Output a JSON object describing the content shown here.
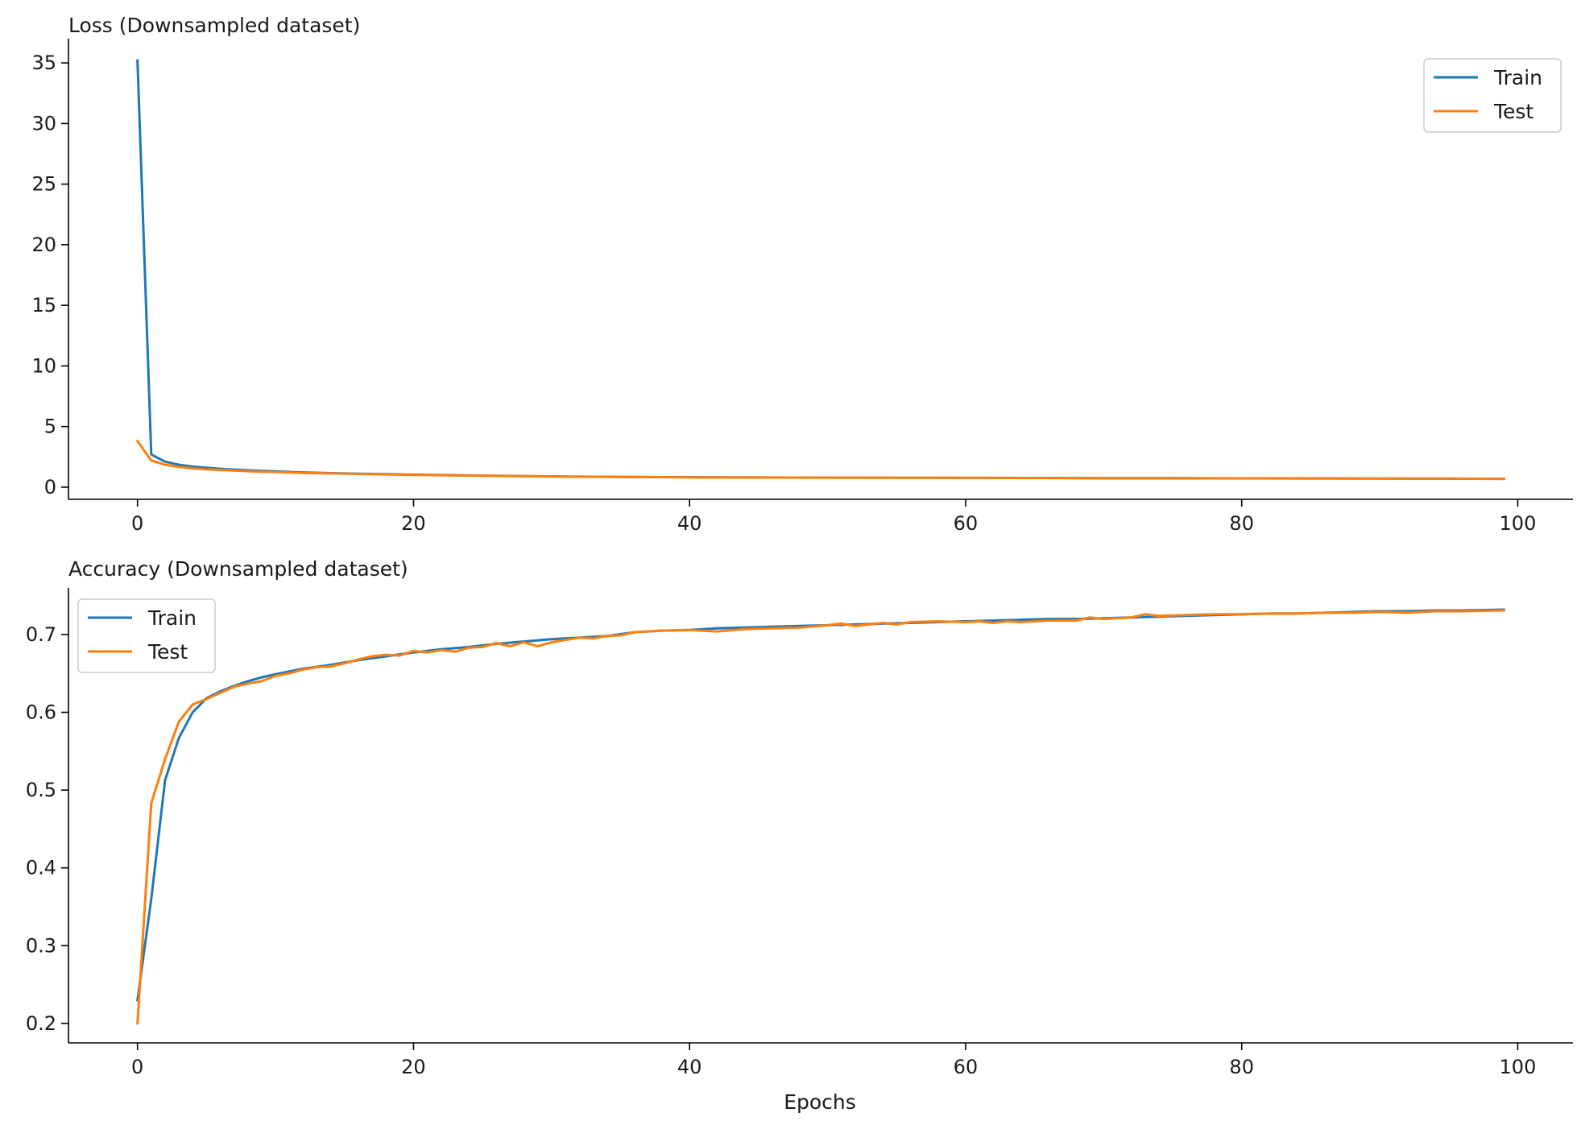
{
  "colors": {
    "train": "#1f77b4",
    "test": "#ff7f0e",
    "axis": "#000000"
  },
  "chart_data": [
    {
      "type": "line",
      "title": "Loss (Downsampled dataset)",
      "xlabel": "",
      "ylabel": "",
      "xlim": [
        -5,
        104
      ],
      "ylim": [
        -1,
        37
      ],
      "xticks": [
        0,
        20,
        40,
        60,
        80,
        100
      ],
      "yticks": [
        0,
        5,
        10,
        15,
        20,
        25,
        30,
        35
      ],
      "xtick_labels": [
        "0",
        "20",
        "40",
        "60",
        "80",
        "100"
      ],
      "ytick_labels": [
        "0",
        "5",
        "10",
        "15",
        "20",
        "25",
        "30",
        "35"
      ],
      "legend_position": "top-right",
      "grid": false,
      "series": [
        {
          "name": "Train",
          "x": [
            0,
            1,
            2,
            3,
            4,
            5,
            6,
            7,
            8,
            9,
            10,
            12,
            14,
            16,
            18,
            20,
            25,
            30,
            35,
            40,
            45,
            50,
            55,
            60,
            65,
            70,
            75,
            80,
            85,
            90,
            95,
            99
          ],
          "y": [
            35.2,
            2.7,
            2.1,
            1.85,
            1.7,
            1.6,
            1.52,
            1.45,
            1.39,
            1.34,
            1.3,
            1.22,
            1.16,
            1.11,
            1.07,
            1.03,
            0.95,
            0.89,
            0.85,
            0.82,
            0.8,
            0.79,
            0.78,
            0.77,
            0.76,
            0.75,
            0.74,
            0.73,
            0.72,
            0.71,
            0.7,
            0.69
          ]
        },
        {
          "name": "Test",
          "x": [
            0,
            1,
            2,
            3,
            4,
            5,
            6,
            7,
            8,
            9,
            10,
            12,
            14,
            16,
            18,
            20,
            25,
            30,
            35,
            40,
            45,
            50,
            55,
            60,
            65,
            70,
            75,
            80,
            85,
            90,
            95,
            99
          ],
          "y": [
            3.8,
            2.2,
            1.85,
            1.67,
            1.56,
            1.48,
            1.42,
            1.37,
            1.32,
            1.28,
            1.25,
            1.18,
            1.13,
            1.09,
            1.05,
            1.01,
            0.94,
            0.88,
            0.84,
            0.81,
            0.8,
            0.79,
            0.78,
            0.77,
            0.76,
            0.75,
            0.74,
            0.73,
            0.72,
            0.71,
            0.7,
            0.69
          ]
        }
      ]
    },
    {
      "type": "line",
      "title": "Accuracy (Downsampled dataset)",
      "xlabel": "Epochs",
      "ylabel": "",
      "xlim": [
        -5,
        104
      ],
      "ylim": [
        0.175,
        0.76
      ],
      "xticks": [
        0,
        20,
        40,
        60,
        80,
        100
      ],
      "yticks": [
        0.2,
        0.3,
        0.4,
        0.5,
        0.6,
        0.7
      ],
      "xtick_labels": [
        "0",
        "20",
        "40",
        "60",
        "80",
        "100"
      ],
      "ytick_labels": [
        "0.2",
        "0.3",
        "0.4",
        "0.5",
        "0.6",
        "0.7"
      ],
      "legend_position": "top-left",
      "grid": false,
      "series": [
        {
          "name": "Train",
          "x": [
            0,
            1,
            2,
            3,
            4,
            5,
            6,
            7,
            8,
            9,
            10,
            12,
            14,
            16,
            18,
            20,
            22,
            24,
            26,
            28,
            30,
            32,
            34,
            36,
            38,
            40,
            42,
            44,
            46,
            48,
            50,
            52,
            54,
            56,
            58,
            60,
            62,
            64,
            66,
            68,
            70,
            72,
            74,
            76,
            78,
            80,
            82,
            84,
            86,
            88,
            90,
            92,
            94,
            96,
            99
          ],
          "y": [
            0.23,
            0.36,
            0.513,
            0.567,
            0.6,
            0.618,
            0.627,
            0.634,
            0.64,
            0.645,
            0.649,
            0.656,
            0.661,
            0.667,
            0.672,
            0.677,
            0.681,
            0.684,
            0.688,
            0.691,
            0.694,
            0.696,
            0.698,
            0.703,
            0.705,
            0.706,
            0.708,
            0.709,
            0.71,
            0.711,
            0.712,
            0.713,
            0.714,
            0.715,
            0.716,
            0.717,
            0.718,
            0.719,
            0.72,
            0.72,
            0.721,
            0.722,
            0.723,
            0.724,
            0.725,
            0.726,
            0.727,
            0.727,
            0.728,
            0.729,
            0.73,
            0.73,
            0.731,
            0.731,
            0.732
          ]
        },
        {
          "name": "Test",
          "x": [
            0,
            1,
            2,
            3,
            4,
            5,
            6,
            7,
            8,
            9,
            10,
            11,
            12,
            13,
            14,
            15,
            16,
            17,
            18,
            19,
            20,
            21,
            22,
            23,
            24,
            25,
            26,
            27,
            28,
            29,
            30,
            31,
            32,
            33,
            34,
            35,
            36,
            38,
            40,
            42,
            44,
            46,
            48,
            50,
            51,
            52,
            53,
            54,
            55,
            56,
            58,
            60,
            61,
            62,
            63,
            64,
            66,
            68,
            69,
            70,
            72,
            73,
            74,
            76,
            78,
            80,
            82,
            84,
            86,
            88,
            90,
            92,
            94,
            96,
            99
          ],
          "y": [
            0.2,
            0.483,
            0.54,
            0.588,
            0.61,
            0.617,
            0.625,
            0.633,
            0.637,
            0.64,
            0.647,
            0.65,
            0.655,
            0.658,
            0.659,
            0.663,
            0.668,
            0.672,
            0.674,
            0.673,
            0.679,
            0.677,
            0.68,
            0.678,
            0.683,
            0.684,
            0.689,
            0.685,
            0.69,
            0.685,
            0.69,
            0.693,
            0.696,
            0.695,
            0.698,
            0.699,
            0.703,
            0.705,
            0.706,
            0.704,
            0.707,
            0.708,
            0.709,
            0.712,
            0.714,
            0.711,
            0.713,
            0.715,
            0.713,
            0.716,
            0.717,
            0.716,
            0.717,
            0.715,
            0.717,
            0.716,
            0.718,
            0.718,
            0.722,
            0.72,
            0.722,
            0.726,
            0.724,
            0.725,
            0.726,
            0.726,
            0.727,
            0.727,
            0.728,
            0.728,
            0.729,
            0.728,
            0.73,
            0.73,
            0.731
          ]
        }
      ]
    }
  ]
}
